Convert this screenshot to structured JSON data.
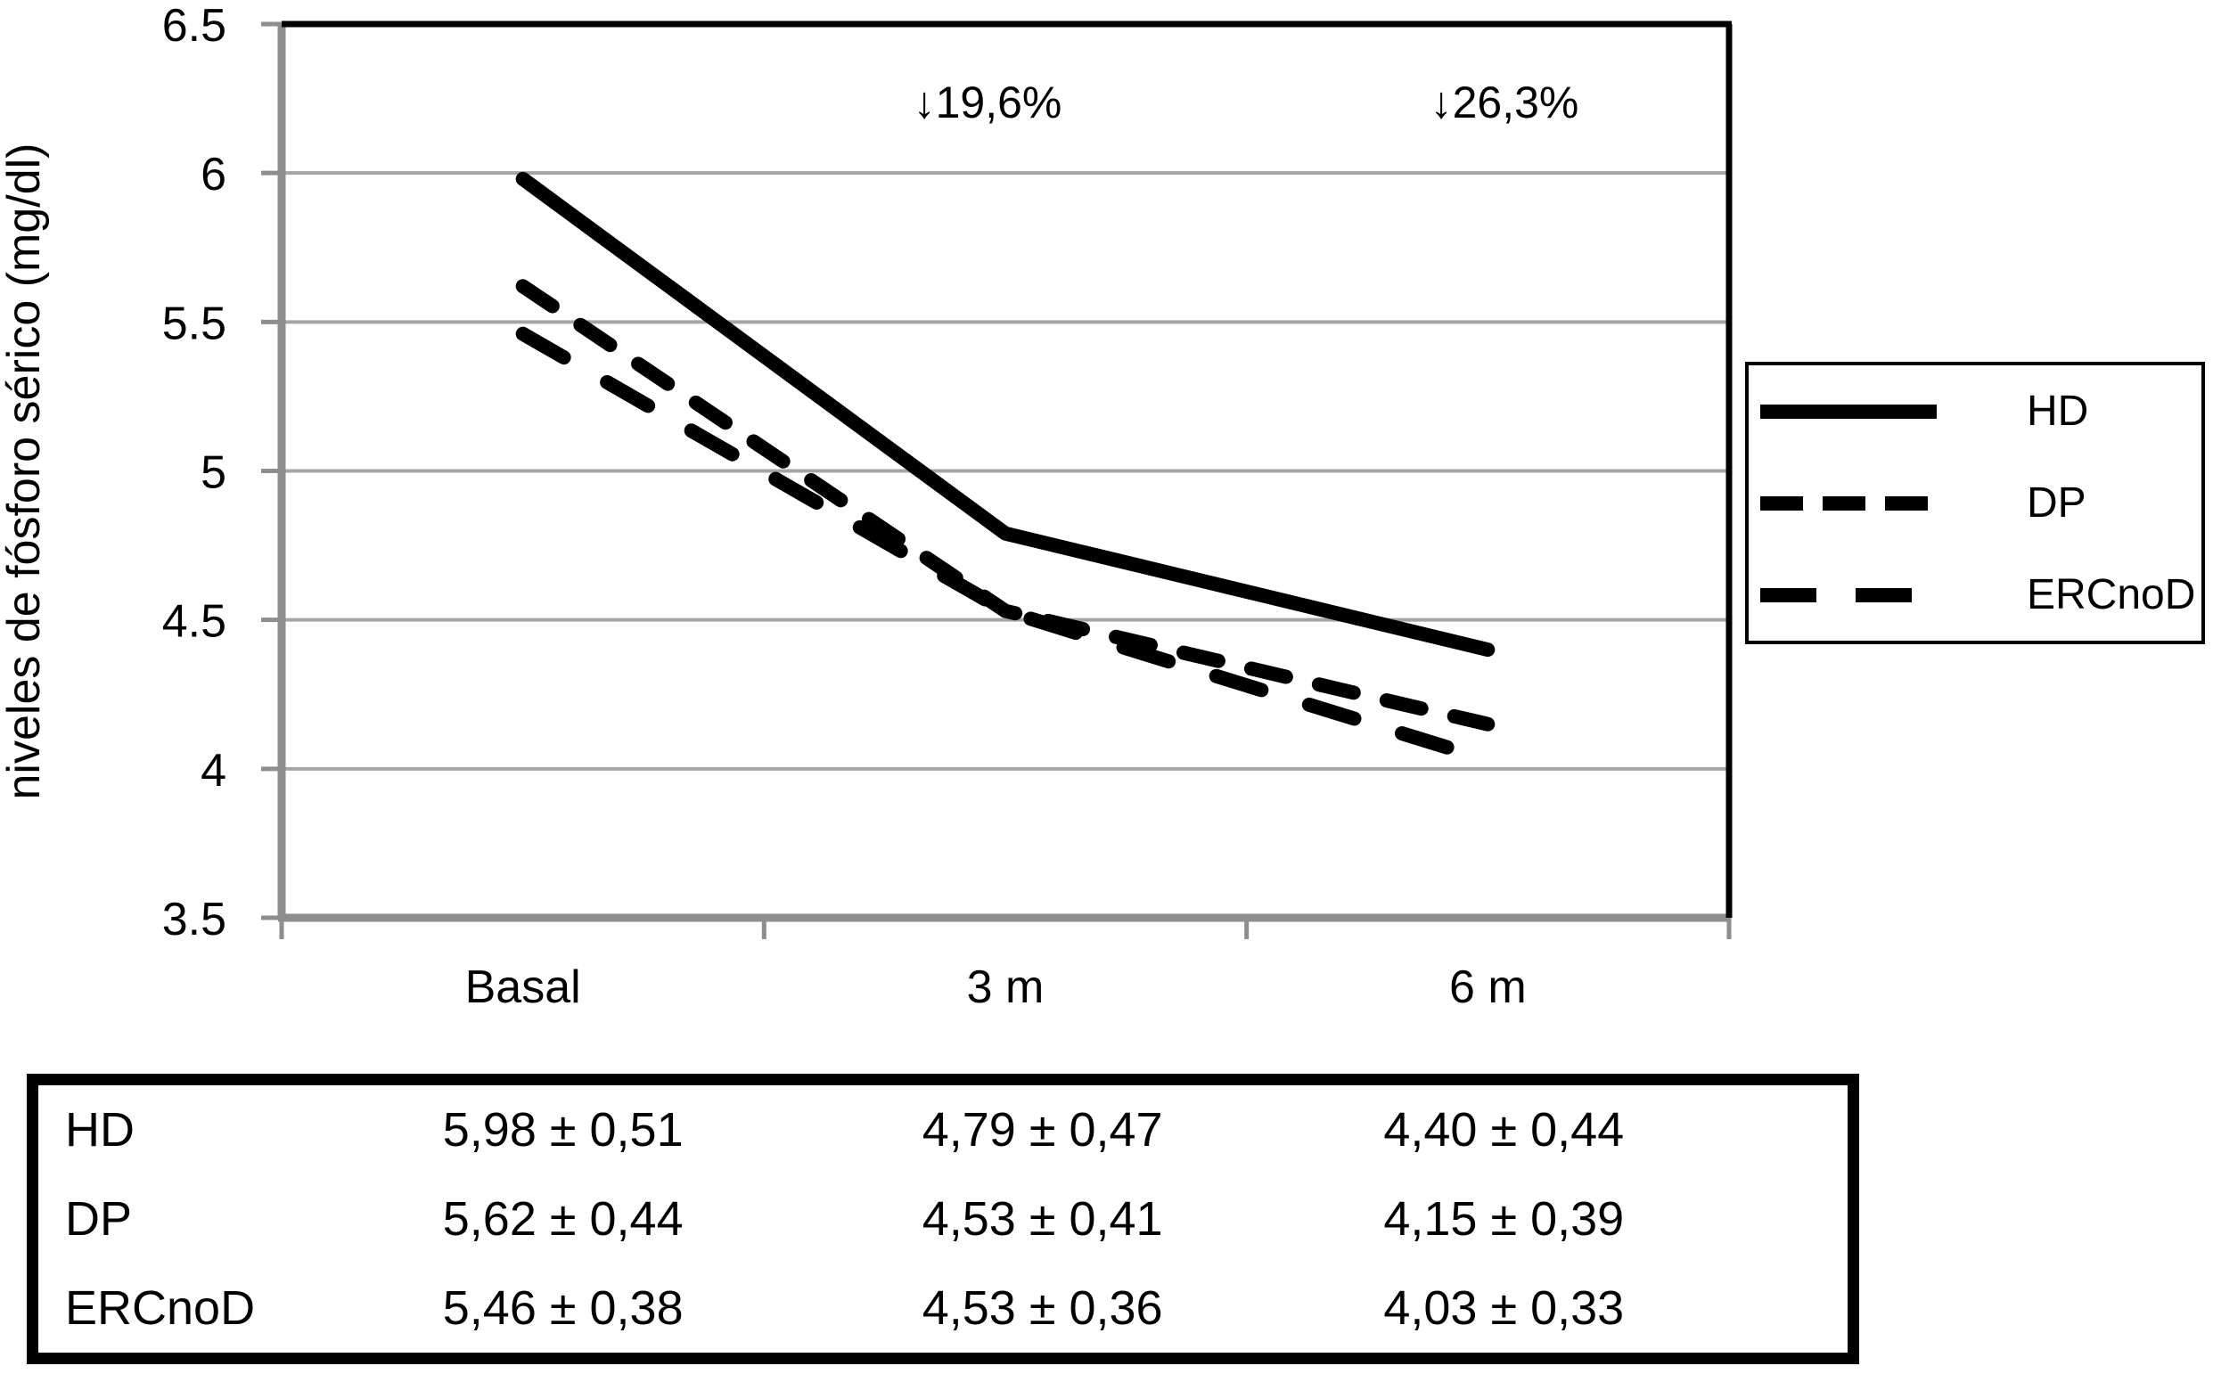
{
  "chart_data": {
    "type": "line",
    "title": "",
    "xlabel": "",
    "ylabel": "niveles de fósforo sérico (mg/dl)",
    "ylim": [
      3.5,
      6.5
    ],
    "y_ticks": [
      "6.5",
      "6",
      "5.5",
      "5",
      "4.5",
      "4",
      "3.5"
    ],
    "categories": [
      "Basal",
      "3 m",
      "6 m"
    ],
    "series": [
      {
        "name": "HD",
        "values": [
          5.98,
          4.79,
          4.4
        ],
        "dash": "solid"
      },
      {
        "name": "DP",
        "values": [
          5.62,
          4.53,
          4.15
        ],
        "dash": "short-dash"
      },
      {
        "name": "ERCnoD",
        "values": [
          5.46,
          4.53,
          4.03
        ],
        "dash": "long-dash"
      }
    ],
    "annotations": [
      {
        "text": "↓19,6%",
        "x_category": "3 m"
      },
      {
        "text": "↓26,3%",
        "x_category": "6 m"
      }
    ],
    "legend_position": "right",
    "grid": "horizontal",
    "colors": {
      "line": "#000000",
      "gridline": "#a5a5a5",
      "axis": "#8e8e8e",
      "frame": "#000000",
      "background": "#ffffff"
    }
  },
  "table": {
    "rows": [
      {
        "label": "HD",
        "values": [
          "5,98 ± 0,51",
          "4,79 ± 0,47",
          "4,40 ± 0,44"
        ]
      },
      {
        "label": "DP",
        "values": [
          "5,62 ± 0,44",
          "4,53 ± 0,41",
          "4,15 ± 0,39"
        ]
      },
      {
        "label": "ERCnoD",
        "values": [
          "5,46 ± 0,38",
          "4,53 ± 0,36",
          "4,03 ± 0,33"
        ]
      }
    ]
  }
}
